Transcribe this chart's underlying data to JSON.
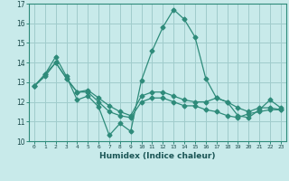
{
  "x": [
    0,
    1,
    2,
    3,
    4,
    5,
    6,
    7,
    8,
    9,
    10,
    11,
    12,
    13,
    14,
    15,
    16,
    17,
    18,
    19,
    20,
    21,
    22,
    23
  ],
  "line1": [
    12.8,
    13.4,
    14.3,
    13.3,
    12.1,
    12.3,
    11.75,
    10.3,
    10.9,
    10.5,
    13.1,
    14.6,
    15.8,
    16.7,
    16.2,
    15.3,
    13.2,
    12.2,
    12.0,
    11.3,
    11.2,
    11.6,
    12.1,
    11.7
  ],
  "line2": [
    12.8,
    13.3,
    14.0,
    13.2,
    12.5,
    12.6,
    12.2,
    11.8,
    11.5,
    11.3,
    12.3,
    12.5,
    12.5,
    12.3,
    12.1,
    12.0,
    12.0,
    12.2,
    12.0,
    11.7,
    11.5,
    11.7,
    11.7,
    11.6
  ],
  "line3": [
    12.8,
    13.4,
    14.0,
    13.2,
    12.5,
    12.5,
    12.0,
    11.5,
    11.3,
    11.2,
    12.0,
    12.2,
    12.2,
    12.0,
    11.8,
    11.8,
    11.6,
    11.5,
    11.3,
    11.2,
    11.4,
    11.5,
    11.6,
    11.6
  ],
  "line_color": "#2e8b7a",
  "bg_color": "#c8eaea",
  "grid_color": "#a0cccc",
  "xlabel": "Humidex (Indice chaleur)",
  "ylim": [
    10,
    17
  ],
  "xlim": [
    -0.5,
    23.5
  ],
  "yticks": [
    10,
    11,
    12,
    13,
    14,
    15,
    16,
    17
  ],
  "xticks": [
    0,
    1,
    2,
    3,
    4,
    5,
    6,
    7,
    8,
    9,
    10,
    11,
    12,
    13,
    14,
    15,
    16,
    17,
    18,
    19,
    20,
    21,
    22,
    23
  ]
}
